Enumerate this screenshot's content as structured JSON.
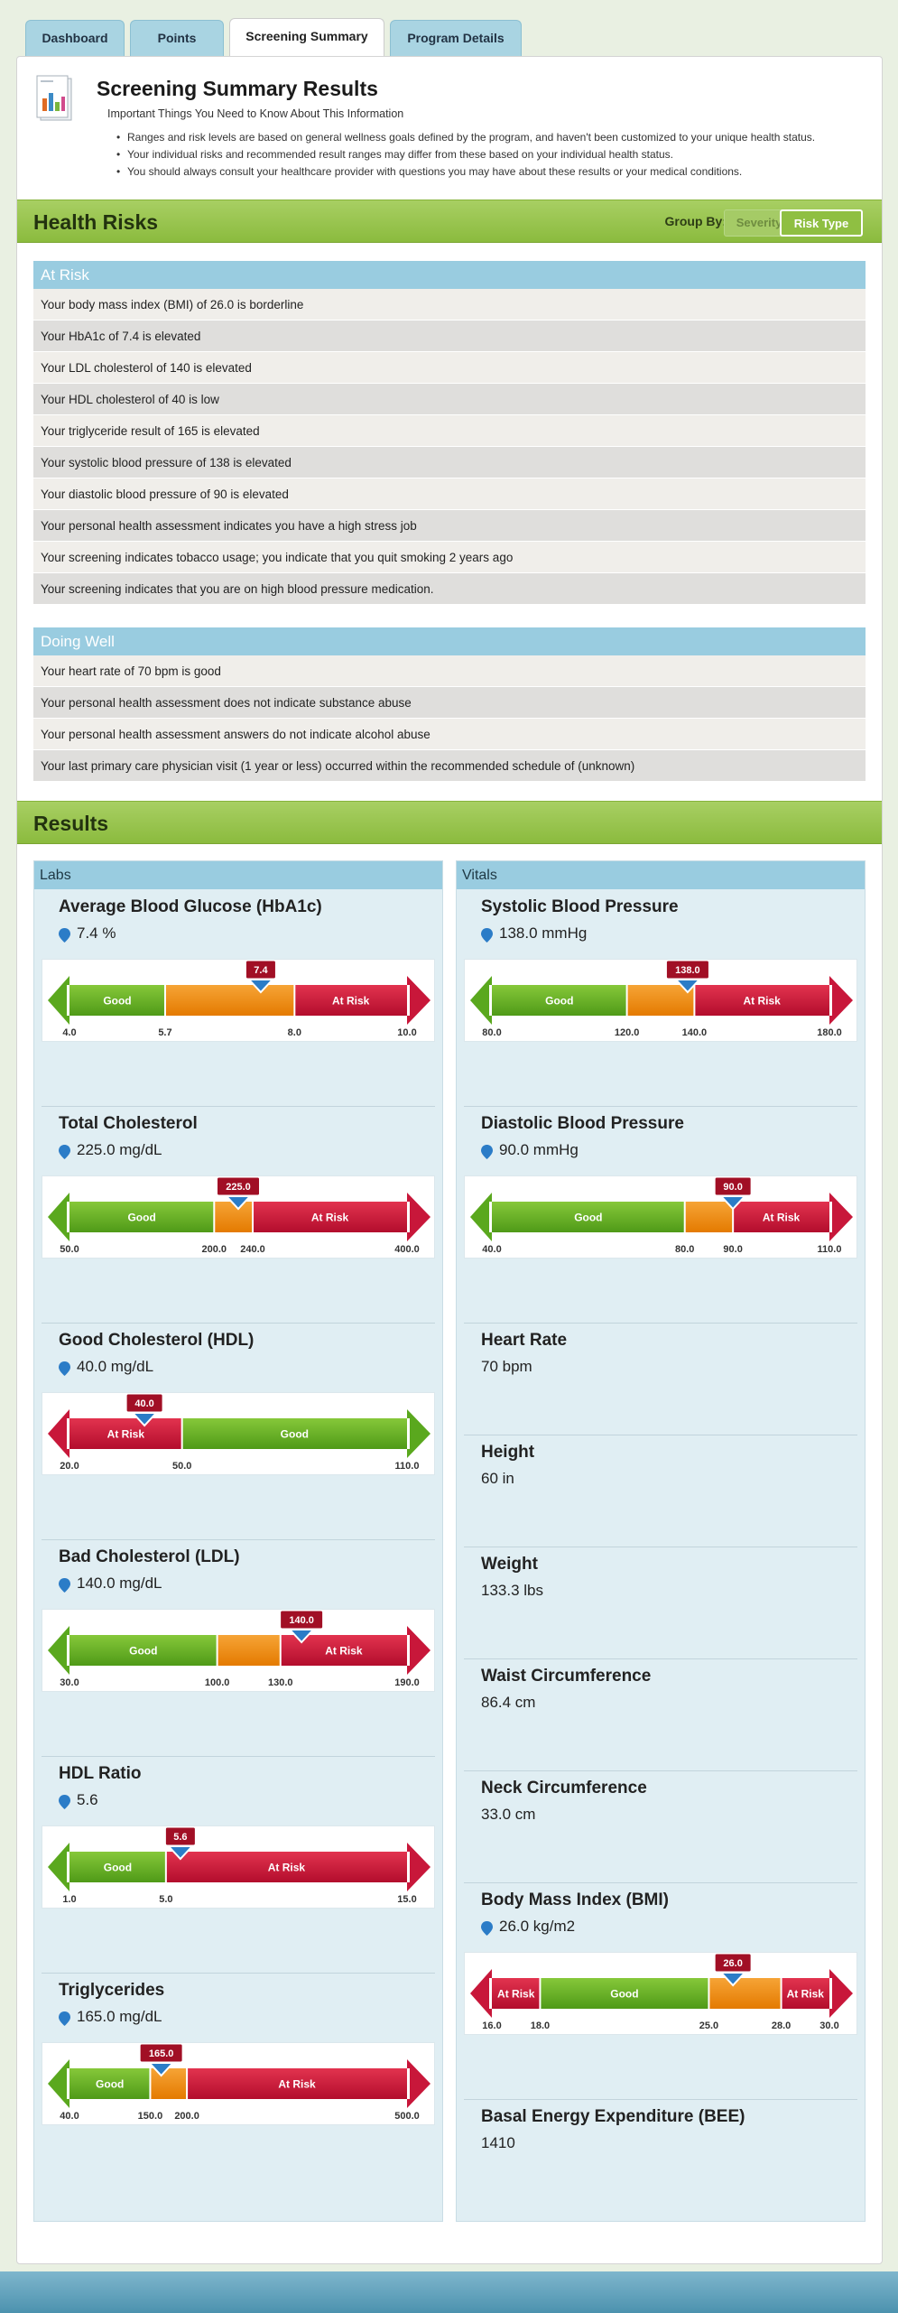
{
  "tabs": [
    {
      "label": "Dashboard"
    },
    {
      "label": "Points"
    },
    {
      "label": "Screening Summary",
      "active": true
    },
    {
      "label": "Program Details"
    }
  ],
  "summary": {
    "title": "Screening Summary Results",
    "subtitle": "Important Things You Need to Know About This Information",
    "bullets": [
      "Ranges and risk levels are based on general wellness goals defined by the program, and haven't been customized to your unique health status.",
      "Your individual risks and recommended result ranges may differ from these based on your individual health status.",
      "You should always consult your healthcare provider with questions you may have about these results or your medical conditions."
    ]
  },
  "health_risks": {
    "title": "Health Risks",
    "group_by_label": "Group By:",
    "severity_button": "Severity",
    "risk_type_button": "Risk Type",
    "at_risk": {
      "heading": "At Risk",
      "items": [
        "Your body mass index (BMI) of 26.0 is borderline",
        "Your HbA1c of 7.4 is elevated",
        "Your LDL cholesterol of 140 is elevated",
        "Your HDL cholesterol of 40 is low",
        "Your triglyceride result of 165 is elevated",
        "Your systolic blood pressure of 138 is elevated",
        "Your diastolic blood pressure of 90 is elevated",
        "Your personal health assessment indicates you have a high stress job",
        "Your screening indicates tobacco usage; you indicate that you quit smoking 2 years ago",
        "Your screening indicates that you are on high blood pressure medication."
      ]
    },
    "doing_well": {
      "heading": "Doing Well",
      "items": [
        "Your heart rate of 70 bpm is good",
        "Your personal health assessment does not indicate substance abuse",
        "Your personal health assessment answers do not indicate alcohol abuse",
        "Your last primary care physician visit (1 year or less) occurred within the recommended  schedule of (unknown)"
      ]
    }
  },
  "results": {
    "title": "Results",
    "labs_heading": "Labs",
    "vitals_heading": "Vitals"
  },
  "colors": {
    "good": "#5aa81e",
    "borderline": "#ef8a10",
    "at_risk": "#c8173a",
    "panel": "#e0eef3",
    "header": "#99cce0",
    "green_bar": "#9bc652"
  },
  "labs": [
    {
      "name": "Average Blood Glucose (HbA1c)",
      "value": "7.4 %",
      "marker": 7.4,
      "marker_label": "7.4",
      "range": [
        4.0,
        10.0
      ],
      "segments": [
        {
          "from": 4.0,
          "to": 5.7,
          "zone": "good",
          "label": "Good"
        },
        {
          "from": 5.7,
          "to": 8.0,
          "zone": "borderline",
          "label": ""
        },
        {
          "from": 8.0,
          "to": 10.0,
          "zone": "at_risk",
          "label": "At Risk"
        }
      ],
      "ticks": [
        "4.0",
        "5.7",
        "8.0",
        "10.0"
      ]
    },
    {
      "name": "Total Cholesterol",
      "value": "225.0 mg/dL",
      "marker": 225.0,
      "marker_label": "225.0",
      "range": [
        50.0,
        400.0
      ],
      "segments": [
        {
          "from": 50.0,
          "to": 200.0,
          "zone": "good",
          "label": "Good"
        },
        {
          "from": 200.0,
          "to": 240.0,
          "zone": "borderline",
          "label": ""
        },
        {
          "from": 240.0,
          "to": 400.0,
          "zone": "at_risk",
          "label": "At Risk"
        }
      ],
      "ticks": [
        "50.0",
        "200.0",
        "240.0",
        "400.0"
      ]
    },
    {
      "name": "Good Cholesterol (HDL)",
      "value": "40.0 mg/dL",
      "marker": 40.0,
      "marker_label": "40.0",
      "range": [
        20.0,
        110.0
      ],
      "segments": [
        {
          "from": 20.0,
          "to": 50.0,
          "zone": "at_risk",
          "label": "At Risk"
        },
        {
          "from": 50.0,
          "to": 110.0,
          "zone": "good",
          "label": "Good"
        }
      ],
      "ticks": [
        "20.0",
        "50.0",
        "110.0"
      ]
    },
    {
      "name": "Bad Cholesterol (LDL)",
      "value": "140.0 mg/dL",
      "marker": 140.0,
      "marker_label": "140.0",
      "range": [
        30.0,
        190.0
      ],
      "segments": [
        {
          "from": 30.0,
          "to": 100.0,
          "zone": "good",
          "label": "Good"
        },
        {
          "from": 100.0,
          "to": 130.0,
          "zone": "borderline",
          "label": ""
        },
        {
          "from": 130.0,
          "to": 190.0,
          "zone": "at_risk",
          "label": "At Risk"
        }
      ],
      "ticks": [
        "30.0",
        "100.0",
        "130.0",
        "190.0"
      ]
    },
    {
      "name": "HDL Ratio",
      "value": "5.6",
      "marker": 5.6,
      "marker_label": "5.6",
      "range": [
        1.0,
        15.0
      ],
      "segments": [
        {
          "from": 1.0,
          "to": 5.0,
          "zone": "good",
          "label": "Good"
        },
        {
          "from": 5.0,
          "to": 15.0,
          "zone": "at_risk",
          "label": "At Risk"
        }
      ],
      "ticks": [
        "1.0",
        "5.0",
        "15.0"
      ]
    },
    {
      "name": "Triglycerides",
      "value": "165.0 mg/dL",
      "marker": 165.0,
      "marker_label": "165.0",
      "range": [
        40.0,
        500.0
      ],
      "segments": [
        {
          "from": 40.0,
          "to": 150.0,
          "zone": "good",
          "label": "Good"
        },
        {
          "from": 150.0,
          "to": 200.0,
          "zone": "borderline",
          "label": ""
        },
        {
          "from": 200.0,
          "to": 500.0,
          "zone": "at_risk",
          "label": "At Risk"
        }
      ],
      "ticks": [
        "40.0",
        "150.0",
        "200.0",
        "500.0"
      ]
    }
  ],
  "vitals": [
    {
      "name": "Systolic Blood Pressure",
      "value": "138.0 mmHg",
      "marker": 138.0,
      "marker_label": "138.0",
      "range": [
        80.0,
        180.0
      ],
      "segments": [
        {
          "from": 80.0,
          "to": 120.0,
          "zone": "good",
          "label": "Good"
        },
        {
          "from": 120.0,
          "to": 140.0,
          "zone": "borderline",
          "label": ""
        },
        {
          "from": 140.0,
          "to": 180.0,
          "zone": "at_risk",
          "label": "At Risk"
        }
      ],
      "ticks": [
        "80.0",
        "120.0",
        "140.0",
        "180.0"
      ]
    },
    {
      "name": "Diastolic Blood Pressure",
      "value": "90.0 mmHg",
      "marker": 90.0,
      "marker_label": "90.0",
      "range": [
        40.0,
        110.0
      ],
      "segments": [
        {
          "from": 40.0,
          "to": 80.0,
          "zone": "good",
          "label": "Good"
        },
        {
          "from": 80.0,
          "to": 90.0,
          "zone": "borderline",
          "label": ""
        },
        {
          "from": 90.0,
          "to": 110.0,
          "zone": "at_risk",
          "label": "At Risk"
        }
      ],
      "ticks": [
        "40.0",
        "80.0",
        "90.0",
        "110.0"
      ]
    },
    {
      "name": "Heart Rate",
      "value": "70 bpm"
    },
    {
      "name": "Height",
      "value": "60 in"
    },
    {
      "name": "Weight",
      "value": "133.3 lbs"
    },
    {
      "name": "Waist Circumference",
      "value": "86.4 cm"
    },
    {
      "name": "Neck Circumference",
      "value": "33.0 cm"
    },
    {
      "name": "Body Mass Index (BMI)",
      "value": "26.0 kg/m2",
      "marker": 26.0,
      "marker_label": "26.0",
      "range": [
        16.0,
        30.0
      ],
      "segments": [
        {
          "from": 16.0,
          "to": 18.0,
          "zone": "at_risk",
          "label": "At Risk"
        },
        {
          "from": 18.0,
          "to": 25.0,
          "zone": "good",
          "label": "Good"
        },
        {
          "from": 25.0,
          "to": 28.0,
          "zone": "borderline",
          "label": ""
        },
        {
          "from": 28.0,
          "to": 30.0,
          "zone": "at_risk",
          "label": "At Risk"
        }
      ],
      "ticks": [
        "16.0",
        "18.0",
        "25.0",
        "28.0",
        "30.0"
      ]
    },
    {
      "name": "Basal Energy Expenditure (BEE)",
      "value": "1410"
    }
  ]
}
